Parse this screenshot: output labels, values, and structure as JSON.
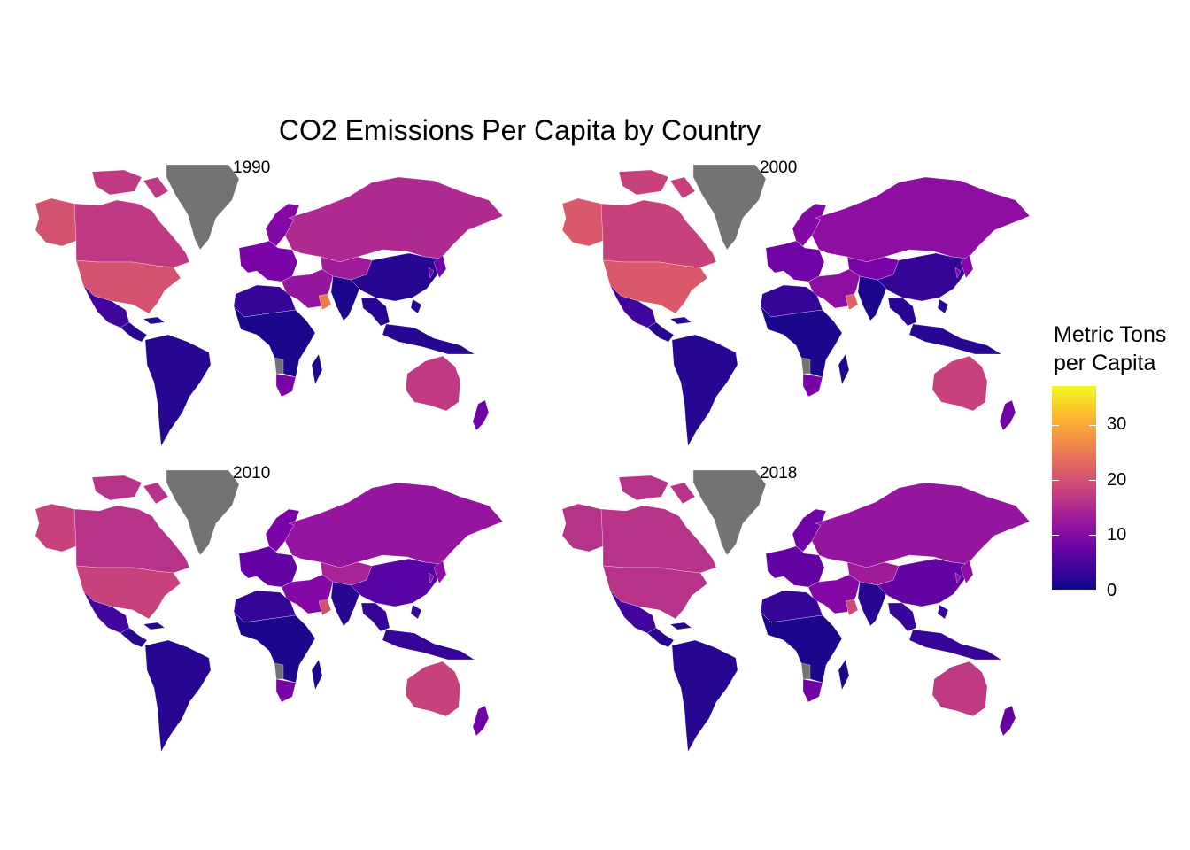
{
  "title": "CO2 Emissions Per Capita by Country",
  "legend": {
    "title": "Metric Tons\nper Capita",
    "ticks": [
      {
        "label": "30",
        "value": 30
      },
      {
        "label": "20",
        "value": 20
      },
      {
        "label": "10",
        "value": 10
      },
      {
        "label": "0",
        "value": 0
      }
    ],
    "range": [
      0,
      37
    ],
    "colormap": "plasma",
    "na_color": "#737373"
  },
  "panels": [
    {
      "label": "1990",
      "values": {
        "alaska": 20,
        "canada": 17,
        "usa": 20,
        "mexico": 4,
        "central_america": 2,
        "south_america": 2,
        "greenland": null,
        "europe_west": 9,
        "scandinavia": 10,
        "russia": 15,
        "central_asia": 13,
        "middle_east": 12,
        "gulf": 25,
        "africa_north": 3,
        "africa_sub": 1,
        "south_africa": 9,
        "southern_africa_na": null,
        "india": 1,
        "china": 2,
        "east_asia": 8,
        "se_asia": 2,
        "australia": 17,
        "new_zealand": 8
      }
    },
    {
      "label": "2000",
      "values": {
        "alaska": 21,
        "canada": 18,
        "usa": 21,
        "mexico": 4,
        "central_america": 2,
        "south_america": 2,
        "greenland": null,
        "europe_west": 8,
        "scandinavia": 10,
        "russia": 11,
        "central_asia": 9,
        "middle_east": 11,
        "gulf": 22,
        "africa_north": 3,
        "africa_sub": 1,
        "south_africa": 9,
        "southern_africa_na": null,
        "india": 1,
        "china": 3,
        "east_asia": 10,
        "se_asia": 2,
        "australia": 18,
        "new_zealand": 8
      }
    },
    {
      "label": "2010",
      "values": {
        "alaska": 18,
        "canada": 16,
        "usa": 18,
        "mexico": 4,
        "central_america": 2,
        "south_america": 2,
        "greenland": null,
        "europe_west": 7,
        "scandinavia": 9,
        "russia": 12,
        "central_asia": 14,
        "middle_east": 10,
        "gulf": 20,
        "africa_north": 3,
        "africa_sub": 1,
        "south_africa": 9,
        "southern_africa_na": null,
        "india": 2,
        "china": 6,
        "east_asia": 11,
        "se_asia": 3,
        "australia": 18,
        "new_zealand": 8
      }
    },
    {
      "label": "2018",
      "values": {
        "alaska": 16,
        "canada": 16,
        "usa": 16,
        "mexico": 4,
        "central_america": 2,
        "south_america": 2,
        "greenland": null,
        "europe_west": 7,
        "scandinavia": 8,
        "russia": 12,
        "central_asia": 13,
        "middle_east": 10,
        "gulf": 19,
        "africa_north": 3,
        "africa_sub": 1,
        "south_africa": 8,
        "southern_africa_na": null,
        "india": 2,
        "china": 7,
        "east_asia": 11,
        "se_asia": 3,
        "australia": 17,
        "new_zealand": 7
      }
    }
  ]
}
